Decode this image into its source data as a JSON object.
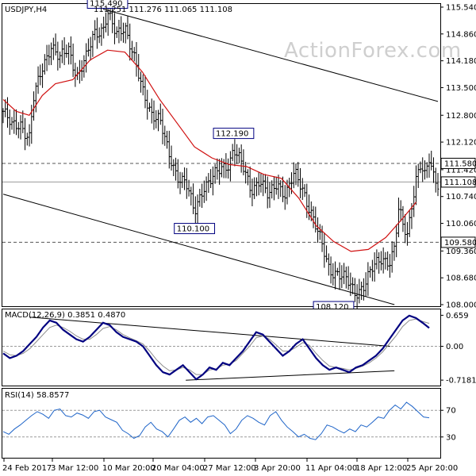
{
  "chart_data": [
    {
      "type": "candlestick",
      "title": "USDJPY,H4",
      "ohlc_text": "111.251 111.276 111.065 111.108",
      "watermark": "ActionForex.com",
      "ylim": [
        108.0,
        115.6
      ],
      "y_ticks": [
        "115.540",
        "114.860",
        "114.180",
        "113.500",
        "112.800",
        "112.120",
        "111.420",
        "110.740",
        "110.060",
        "109.360",
        "108.680",
        "108.000"
      ],
      "x_ticks": [
        "24 Feb 2017",
        "3 Mar 12:00",
        "10 Mar 20:00",
        "20 Mar 04:00",
        "27 Mar 12:00",
        "3 Apr 20:00",
        "11 Apr 04:00",
        "18 Apr 12:00",
        "25 Apr 20:00"
      ],
      "price_labels": [
        {
          "text": "115.490",
          "value": 115.49,
          "x_index": 24
        },
        {
          "text": "112.190",
          "value": 112.19,
          "x_index": 53
        },
        {
          "text": "110.100",
          "value": 110.1,
          "x_index": 44
        },
        {
          "text": "108.120",
          "value": 108.12,
          "x_index": 76
        }
      ],
      "right_labels": [
        {
          "text": "111.580",
          "value": 111.58,
          "kind": "level"
        },
        {
          "text": "111.108",
          "value": 111.108,
          "kind": "current"
        },
        {
          "text": "109.580",
          "value": 109.58,
          "kind": "level"
        }
      ],
      "levels": [
        111.58,
        109.58
      ],
      "current_price": 111.108,
      "channel": {
        "upper": [
          {
            "x_index": 23,
            "y": 115.49
          },
          {
            "x_index": 100,
            "y": 113.15
          }
        ],
        "lower": [
          {
            "x_index": 0,
            "y": 110.8
          },
          {
            "x_index": 90,
            "y": 108.0
          }
        ]
      },
      "ma_series": [
        {
          "i": 0,
          "v": 113.2
        },
        {
          "i": 3,
          "v": 112.9
        },
        {
          "i": 6,
          "v": 112.8
        },
        {
          "i": 9,
          "v": 113.3
        },
        {
          "i": 12,
          "v": 113.6
        },
        {
          "i": 16,
          "v": 113.7
        },
        {
          "i": 20,
          "v": 114.2
        },
        {
          "i": 24,
          "v": 114.45
        },
        {
          "i": 28,
          "v": 114.4
        },
        {
          "i": 32,
          "v": 113.9
        },
        {
          "i": 36,
          "v": 113.2
        },
        {
          "i": 40,
          "v": 112.6
        },
        {
          "i": 44,
          "v": 112.0
        },
        {
          "i": 48,
          "v": 111.72
        },
        {
          "i": 52,
          "v": 111.55
        },
        {
          "i": 56,
          "v": 111.5
        },
        {
          "i": 60,
          "v": 111.3
        },
        {
          "i": 64,
          "v": 111.2
        },
        {
          "i": 68,
          "v": 110.7
        },
        {
          "i": 72,
          "v": 110.0
        },
        {
          "i": 76,
          "v": 109.6
        },
        {
          "i": 80,
          "v": 109.35
        },
        {
          "i": 84,
          "v": 109.4
        },
        {
          "i": 88,
          "v": 109.7
        },
        {
          "i": 92,
          "v": 110.2
        },
        {
          "i": 95,
          "v": 110.6
        }
      ],
      "price_path": [
        {
          "i": 0,
          "v": 112.9
        },
        {
          "i": 2,
          "v": 112.5
        },
        {
          "i": 4,
          "v": 112.6
        },
        {
          "i": 6,
          "v": 112.2
        },
        {
          "i": 7,
          "v": 113.2
        },
        {
          "i": 9,
          "v": 114.0
        },
        {
          "i": 11,
          "v": 114.6
        },
        {
          "i": 13,
          "v": 114.2
        },
        {
          "i": 15,
          "v": 114.5
        },
        {
          "i": 17,
          "v": 113.8
        },
        {
          "i": 19,
          "v": 114.2
        },
        {
          "i": 21,
          "v": 114.9
        },
        {
          "i": 23,
          "v": 115.0
        },
        {
          "i": 24,
          "v": 115.4
        },
        {
          "i": 26,
          "v": 114.8
        },
        {
          "i": 28,
          "v": 115.1
        },
        {
          "i": 30,
          "v": 114.3
        },
        {
          "i": 32,
          "v": 113.4
        },
        {
          "i": 34,
          "v": 112.9
        },
        {
          "i": 36,
          "v": 112.7
        },
        {
          "i": 38,
          "v": 111.8
        },
        {
          "i": 40,
          "v": 111.3
        },
        {
          "i": 42,
          "v": 111.1
        },
        {
          "i": 44,
          "v": 110.3
        },
        {
          "i": 46,
          "v": 111.0
        },
        {
          "i": 48,
          "v": 111.2
        },
        {
          "i": 50,
          "v": 111.4
        },
        {
          "i": 52,
          "v": 111.6
        },
        {
          "i": 53,
          "v": 112.0
        },
        {
          "i": 55,
          "v": 111.5
        },
        {
          "i": 57,
          "v": 110.9
        },
        {
          "i": 59,
          "v": 111.2
        },
        {
          "i": 61,
          "v": 110.7
        },
        {
          "i": 63,
          "v": 111.1
        },
        {
          "i": 65,
          "v": 110.8
        },
        {
          "i": 67,
          "v": 111.3
        },
        {
          "i": 69,
          "v": 110.9
        },
        {
          "i": 71,
          "v": 110.3
        },
        {
          "i": 73,
          "v": 109.6
        },
        {
          "i": 75,
          "v": 108.9
        },
        {
          "i": 77,
          "v": 108.8
        },
        {
          "i": 79,
          "v": 108.6
        },
        {
          "i": 81,
          "v": 108.3
        },
        {
          "i": 83,
          "v": 108.5
        },
        {
          "i": 85,
          "v": 108.9
        },
        {
          "i": 87,
          "v": 109.2
        },
        {
          "i": 89,
          "v": 109.1
        },
        {
          "i": 90,
          "v": 109.4
        },
        {
          "i": 91,
          "v": 110.4
        },
        {
          "i": 92,
          "v": 110.0
        },
        {
          "i": 93,
          "v": 109.8
        },
        {
          "i": 94,
          "v": 110.6
        },
        {
          "i": 95,
          "v": 111.2
        },
        {
          "i": 96,
          "v": 111.5
        },
        {
          "i": 97,
          "v": 111.2
        },
        {
          "i": 98,
          "v": 111.7
        },
        {
          "i": 99,
          "v": 111.3
        },
        {
          "i": 100,
          "v": 111.108
        }
      ]
    },
    {
      "type": "line",
      "title": "MACD(12,26,9) 0.3851 0.4870",
      "ylim": [
        -0.8,
        0.75
      ],
      "y_ticks": [
        "0.659",
        "0.00",
        "-0.7181"
      ],
      "series": [
        {
          "name": "MACD",
          "color": "#000080",
          "values": [
            -0.15,
            -0.25,
            -0.2,
            -0.1,
            0.05,
            0.2,
            0.4,
            0.55,
            0.5,
            0.35,
            0.25,
            0.15,
            0.1,
            0.2,
            0.35,
            0.5,
            0.45,
            0.3,
            0.2,
            0.15,
            0.1,
            0.0,
            -0.2,
            -0.4,
            -0.55,
            -0.6,
            -0.5,
            -0.4,
            -0.55,
            -0.7,
            -0.6,
            -0.45,
            -0.5,
            -0.35,
            -0.4,
            -0.25,
            -0.1,
            0.1,
            0.3,
            0.25,
            0.1,
            -0.05,
            -0.2,
            -0.1,
            0.05,
            0.15,
            -0.05,
            -0.25,
            -0.4,
            -0.5,
            -0.45,
            -0.5,
            -0.55,
            -0.45,
            -0.4,
            -0.3,
            -0.2,
            -0.05,
            0.15,
            0.35,
            0.55,
            0.65,
            0.6,
            0.5,
            0.39
          ]
        },
        {
          "name": "Signal",
          "color": "#8c8c8c",
          "values": [
            -0.1,
            -0.18,
            -0.2,
            -0.15,
            -0.05,
            0.1,
            0.25,
            0.4,
            0.45,
            0.4,
            0.32,
            0.22,
            0.15,
            0.15,
            0.25,
            0.38,
            0.42,
            0.35,
            0.25,
            0.18,
            0.12,
            0.05,
            -0.1,
            -0.28,
            -0.42,
            -0.52,
            -0.5,
            -0.45,
            -0.5,
            -0.6,
            -0.6,
            -0.5,
            -0.48,
            -0.4,
            -0.38,
            -0.3,
            -0.15,
            0.0,
            0.18,
            0.22,
            0.15,
            0.03,
            -0.1,
            -0.1,
            -0.02,
            0.08,
            0.02,
            -0.15,
            -0.3,
            -0.42,
            -0.45,
            -0.47,
            -0.5,
            -0.47,
            -0.42,
            -0.35,
            -0.25,
            -0.12,
            0.05,
            0.22,
            0.42,
            0.55,
            0.58,
            0.53,
            0.487
          ]
        }
      ],
      "trendlines": [
        {
          "from": {
            "x_index": 6,
            "y": 0.62
          },
          "to": {
            "x_index": 89,
            "y": 0.0
          }
        },
        {
          "from": {
            "x_index": 42,
            "y": -0.72
          },
          "to": {
            "x_index": 90,
            "y": -0.52
          }
        }
      ]
    },
    {
      "type": "line",
      "title": "RSI(14) 58.8577",
      "ylim": [
        0,
        100
      ],
      "y_ticks": [
        "70",
        "30"
      ],
      "levels": [
        70,
        30
      ],
      "series": [
        {
          "name": "RSI",
          "color": "#1e64c8",
          "values": [
            38,
            34,
            42,
            48,
            55,
            62,
            68,
            64,
            58,
            70,
            72,
            62,
            60,
            66,
            63,
            58,
            68,
            70,
            60,
            56,
            52,
            40,
            35,
            28,
            32,
            45,
            52,
            42,
            38,
            30,
            42,
            55,
            60,
            52,
            58,
            50,
            60,
            62,
            55,
            48,
            35,
            42,
            55,
            62,
            58,
            52,
            48,
            62,
            68,
            55,
            45,
            38,
            30,
            34,
            28,
            26,
            35,
            48,
            45,
            40,
            36,
            42,
            38,
            48,
            45,
            52,
            60,
            58,
            70,
            78,
            72,
            82,
            76,
            68,
            60,
            58.86
          ]
        }
      ]
    }
  ]
}
